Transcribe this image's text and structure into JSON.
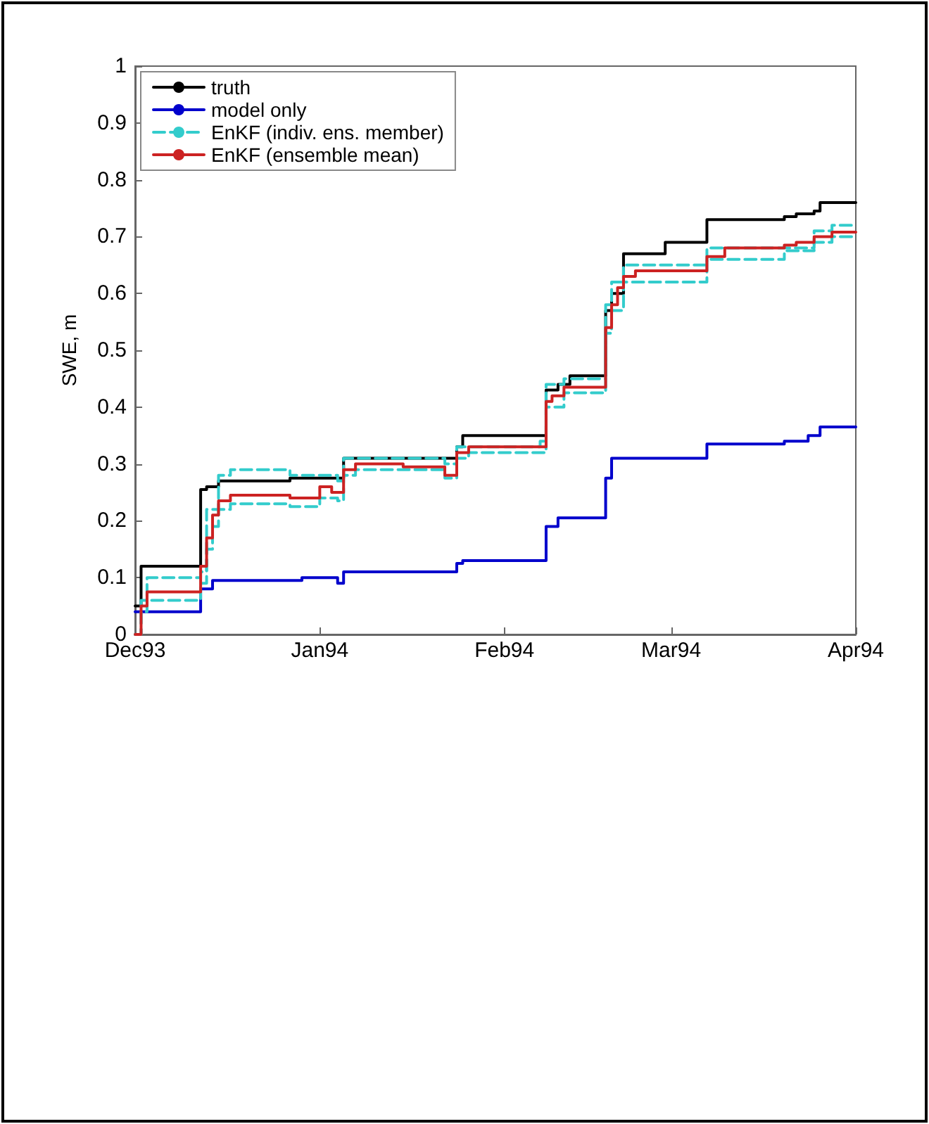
{
  "chart_data": {
    "type": "step",
    "ylabel": "SWE, m",
    "xlim": [
      "1993-12-01",
      "1994-04-01"
    ],
    "xticks": [
      {
        "value": "1993-12-01",
        "label": "Dec93"
      },
      {
        "value": "1994-01-01",
        "label": "Jan94"
      },
      {
        "value": "1994-02-01",
        "label": "Feb94"
      },
      {
        "value": "1994-03-01",
        "label": "Mar94"
      },
      {
        "value": "1994-04-01",
        "label": "Apr94"
      }
    ],
    "ylim": [
      0,
      1
    ],
    "yticks": [
      0,
      0.1,
      0.2,
      0.3,
      0.4,
      0.5,
      0.6,
      0.7,
      0.8,
      0.9,
      1
    ],
    "grid": false,
    "legend": "top left",
    "marker": "none",
    "series": [
      {
        "name": "truth",
        "color": "#000000",
        "line_style": "solid",
        "x": [
          "1993-12-01",
          "1993-12-02",
          "1993-12-12",
          "1993-12-13",
          "1993-12-15",
          "1993-12-27",
          "1994-01-05",
          "1994-01-24",
          "1994-01-25",
          "1994-02-08",
          "1994-02-10",
          "1994-02-12",
          "1994-02-18",
          "1994-02-19",
          "1994-02-21",
          "1994-02-28",
          "1994-03-07",
          "1994-03-20",
          "1994-03-22",
          "1994-03-25",
          "1994-03-26",
          "1994-04-01"
        ],
        "values": [
          0.05,
          0.12,
          0.255,
          0.26,
          0.27,
          0.275,
          0.31,
          0.33,
          0.35,
          0.43,
          0.44,
          0.455,
          0.57,
          0.6,
          0.67,
          0.69,
          0.73,
          0.735,
          0.74,
          0.745,
          0.76,
          0.76
        ]
      },
      {
        "name": "model only",
        "color": "#0000cc",
        "line_style": "solid",
        "x": [
          "1993-12-01",
          "1993-12-12",
          "1993-12-14",
          "1993-12-29",
          "1994-01-04",
          "1994-01-05",
          "1994-01-24",
          "1994-01-25",
          "1994-02-08",
          "1994-02-10",
          "1994-02-18",
          "1994-02-19",
          "1994-03-07",
          "1994-03-20",
          "1994-03-24",
          "1994-03-26",
          "1994-04-01"
        ],
        "values": [
          0.04,
          0.08,
          0.095,
          0.1,
          0.09,
          0.11,
          0.125,
          0.13,
          0.19,
          0.205,
          0.275,
          0.31,
          0.335,
          0.34,
          0.35,
          0.365,
          0.365
        ]
      },
      {
        "name": "EnKF (indiv. ens. member)",
        "color": "#33cccc",
        "line_style": "dashed",
        "x": [
          "1993-12-01",
          "1993-12-02",
          "1993-12-03",
          "1993-12-12",
          "1993-12-13",
          "1993-12-14",
          "1993-12-15",
          "1993-12-17",
          "1993-12-27",
          "1994-01-01",
          "1994-01-04",
          "1994-01-05",
          "1994-01-07",
          "1994-01-22",
          "1994-01-24",
          "1994-01-26",
          "1994-02-07",
          "1994-02-08",
          "1994-02-11",
          "1994-02-18",
          "1994-02-19",
          "1994-02-21",
          "1994-03-07",
          "1994-03-20",
          "1994-03-25",
          "1994-03-28",
          "1994-04-01"
        ],
        "values": [
          0,
          0.04,
          0.06,
          0.09,
          0.15,
          0.19,
          0.22,
          0.23,
          0.225,
          0.24,
          0.235,
          0.28,
          0.29,
          0.275,
          0.31,
          0.32,
          0.32,
          0.4,
          0.425,
          0.53,
          0.57,
          0.62,
          0.66,
          0.675,
          0.69,
          0.7,
          0.7
        ]
      },
      {
        "color": "#33cccc",
        "line_style": "dashed",
        "x": [
          "1993-12-01",
          "1993-12-02",
          "1993-12-03",
          "1993-12-12",
          "1993-12-13",
          "1993-12-15",
          "1993-12-17",
          "1993-12-27",
          "1994-01-04",
          "1994-01-05",
          "1994-01-22",
          "1994-01-24",
          "1994-02-07",
          "1994-02-08",
          "1994-02-11",
          "1994-02-18",
          "1994-02-19",
          "1994-02-21",
          "1994-03-07",
          "1994-03-25",
          "1994-03-28",
          "1994-04-01"
        ],
        "values": [
          0,
          0.06,
          0.1,
          0.11,
          0.22,
          0.28,
          0.29,
          0.28,
          0.27,
          0.31,
          0.3,
          0.33,
          0.34,
          0.44,
          0.45,
          0.58,
          0.62,
          0.65,
          0.68,
          0.71,
          0.72,
          0.72
        ]
      },
      {
        "name": "EnKF (ensemble mean)",
        "color": "#cc2222",
        "line_style": "solid",
        "x": [
          "1993-12-01",
          "1993-12-02",
          "1993-12-03",
          "1993-12-12",
          "1993-12-13",
          "1993-12-14",
          "1993-12-15",
          "1993-12-17",
          "1993-12-27",
          "1994-01-01",
          "1994-01-03",
          "1994-01-05",
          "1994-01-07",
          "1994-01-15",
          "1994-01-22",
          "1994-01-24",
          "1994-01-26",
          "1994-02-08",
          "1994-02-09",
          "1994-02-11",
          "1994-02-18",
          "1994-02-19",
          "1994-02-20",
          "1994-02-21",
          "1994-02-23",
          "1994-03-07",
          "1994-03-10",
          "1994-03-20",
          "1994-03-22",
          "1994-03-25",
          "1994-03-28",
          "1994-04-01"
        ],
        "values": [
          0,
          0.05,
          0.075,
          0.12,
          0.17,
          0.21,
          0.235,
          0.245,
          0.24,
          0.26,
          0.25,
          0.29,
          0.3,
          0.295,
          0.28,
          0.32,
          0.33,
          0.41,
          0.42,
          0.435,
          0.54,
          0.58,
          0.61,
          0.63,
          0.64,
          0.665,
          0.68,
          0.685,
          0.69,
          0.7,
          0.708,
          0.708
        ]
      }
    ]
  }
}
